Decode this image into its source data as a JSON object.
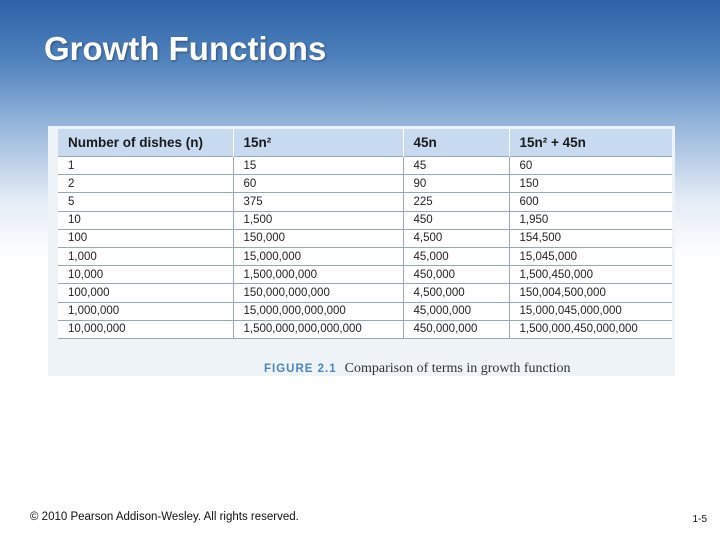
{
  "slide": {
    "title": "Growth Functions",
    "copyright": "© 2010 Pearson Addison-Wesley. All rights reserved.",
    "slide_number": "1-5"
  },
  "table": {
    "headers": [
      "Number of dishes (n)",
      "15n²",
      "45n",
      "15n² + 45n"
    ],
    "rows": [
      [
        "1",
        "15",
        "45",
        "60"
      ],
      [
        "2",
        "60",
        "90",
        "150"
      ],
      [
        "5",
        "375",
        "225",
        "600"
      ],
      [
        "10",
        "1,500",
        "450",
        "1,950"
      ],
      [
        "100",
        "150,000",
        "4,500",
        "154,500"
      ],
      [
        "1,000",
        "15,000,000",
        "45,000",
        "15,045,000"
      ],
      [
        "10,000",
        "1,500,000,000",
        "450,000",
        "1,500,450,000"
      ],
      [
        "100,000",
        "150,000,000,000",
        "4,500,000",
        "150,004,500,000"
      ],
      [
        "1,000,000",
        "15,000,000,000,000",
        "45,000,000",
        "15,000,045,000,000"
      ],
      [
        "10,000,000",
        "1,500,000,000,000,000",
        "450,000,000",
        "1,500,000,450,000,000"
      ]
    ]
  },
  "figure": {
    "label": "FIGURE 2.1",
    "caption": "Comparison of terms in growth function"
  }
}
